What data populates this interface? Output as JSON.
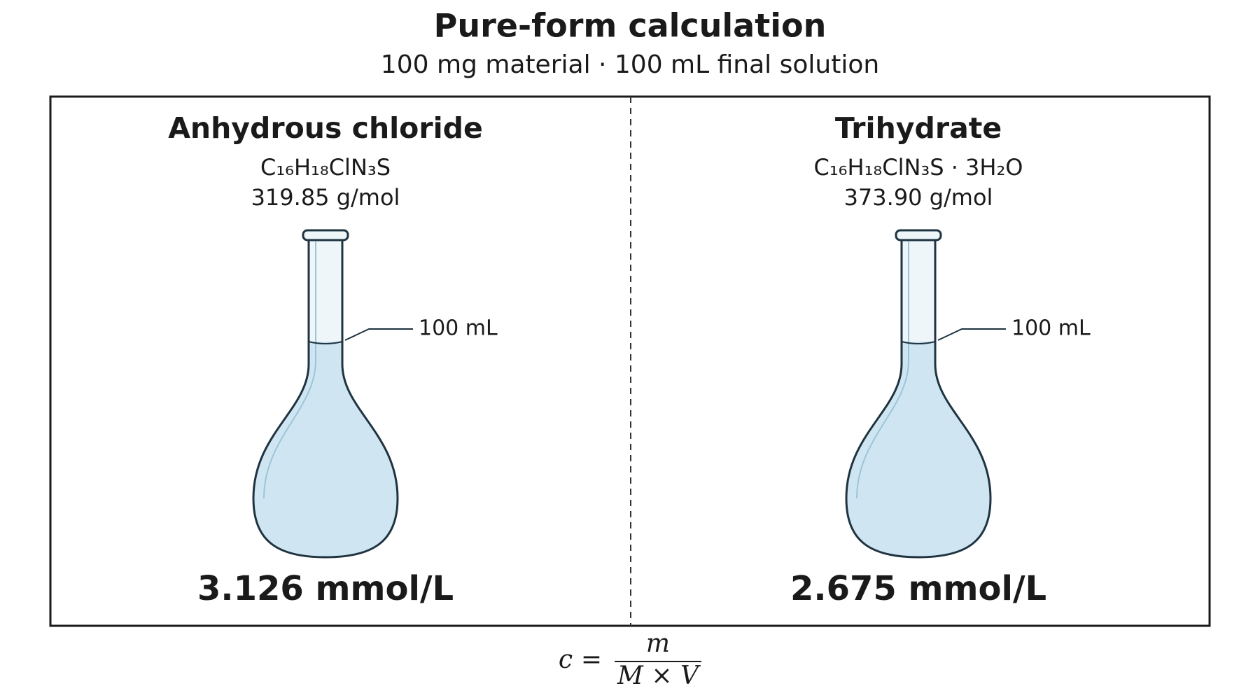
{
  "title": "Pure-form calculation",
  "subtitle": "100 mg material · 100 mL final solution",
  "panels": [
    {
      "name": "Anhydrous chloride",
      "formula": "C₁₆H₁₈ClN₃S",
      "molar_mass": "319.85 g/mol",
      "volume_label": "100 mL",
      "concentration": "3.126 mmol/L"
    },
    {
      "name": "Trihydrate",
      "formula": "C₁₆H₁₈ClN₃S · 3H₂O",
      "molar_mass": "373.90 g/mol",
      "volume_label": "100 mL",
      "concentration": "2.675 mmol/L"
    }
  ],
  "equation": {
    "lhs": "c",
    "equals": "=",
    "numerator": "m",
    "denominator": "M × V"
  }
}
